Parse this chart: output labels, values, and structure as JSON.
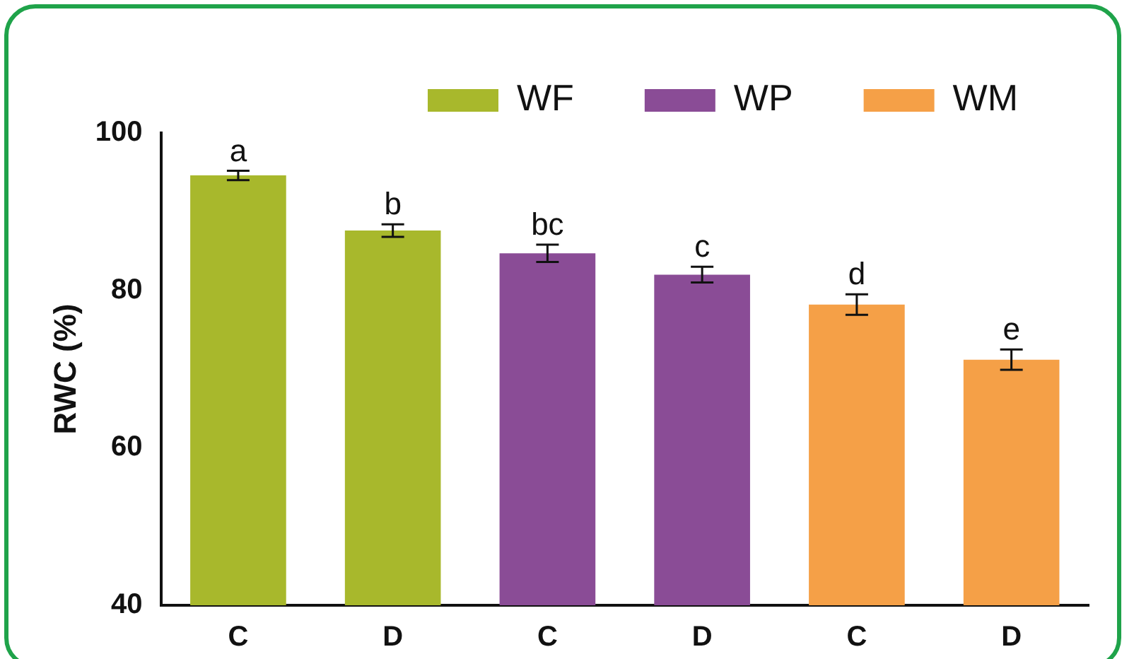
{
  "chart_data": {
    "type": "bar",
    "ylabel": "RWC (%)",
    "categories": [
      "C",
      "D",
      "C",
      "D",
      "C",
      "D"
    ],
    "series": [
      {
        "name": "WF",
        "color": "#a8b82c",
        "values": [
          94.6,
          87.6,
          null,
          null,
          null,
          null
        ],
        "errors": [
          0.6,
          0.8,
          null,
          null,
          null,
          null
        ],
        "value_labels": [
          "a",
          "b",
          null,
          null,
          null,
          null
        ]
      },
      {
        "name": "WP",
        "color": "#8a4c96",
        "values": [
          null,
          null,
          84.7,
          82.0,
          null,
          null
        ],
        "errors": [
          null,
          null,
          1.1,
          1.0,
          null,
          null
        ],
        "value_labels": [
          null,
          null,
          "bc",
          "c",
          null,
          null
        ]
      },
      {
        "name": "WM",
        "color": "#f5a047",
        "values": [
          null,
          null,
          null,
          null,
          78.2,
          71.2
        ],
        "errors": [
          null,
          null,
          null,
          null,
          1.3,
          1.3
        ],
        "value_labels": [
          null,
          null,
          null,
          null,
          "d",
          "e"
        ]
      }
    ],
    "ylim": [
      40,
      100
    ],
    "yticks": [
      40,
      60,
      80,
      100
    ],
    "grid": false,
    "legend": "top"
  }
}
